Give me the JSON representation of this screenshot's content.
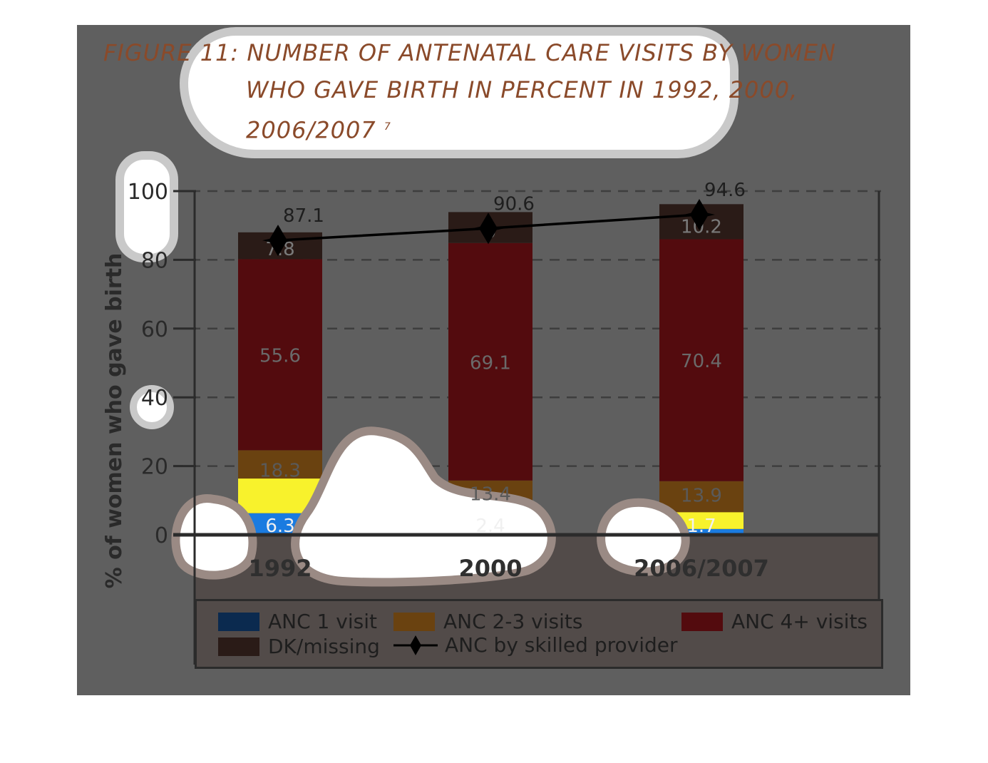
{
  "title": {
    "line1": "FIGURE 11: NUMBER OF ANTENATAL CARE VISITS  BY WOMEN",
    "line2": "WHO GAVE BIRTH IN PERCENT IN 1992, 2000,",
    "line3": "2006/2007",
    "footnote": "7"
  },
  "colors": {
    "anc1": "#1a7be0",
    "anc1_legend": "#0b2a4f",
    "anc23_low": "#f8f22c",
    "anc23": "#6a4210",
    "anc4": "#530b0e",
    "dk": "#2a1b17",
    "line": "#000000"
  },
  "chart_data": {
    "type": "bar",
    "stacked": true,
    "categories": [
      "1992",
      "2000",
      "2006/2007"
    ],
    "ylabel": "% of women who gave birth",
    "ylim": [
      0,
      100
    ],
    "yticks": [
      "0",
      "20",
      "40",
      "60",
      "80",
      "100"
    ],
    "grid": true,
    "legend_position": "bottom",
    "series": [
      {
        "name": "ANC 1 visit",
        "values": [
          6.3,
          2.4,
          1.7
        ],
        "labels": [
          "6.3",
          "2.4",
          "1.7"
        ]
      },
      {
        "name": "ANC 2-3 visits",
        "values": [
          18.3,
          13.4,
          13.9
        ],
        "labels": [
          "18.3",
          "13.4",
          "13.9"
        ]
      },
      {
        "name": "ANC 4+ visits",
        "values": [
          55.6,
          69.1,
          70.4
        ],
        "labels": [
          "55.6",
          "69.1",
          "70.4"
        ]
      },
      {
        "name": "DK/missing",
        "values": [
          7.8,
          9,
          10.2
        ],
        "labels": [
          "7.8",
          "9",
          "10.2"
        ]
      }
    ],
    "line_series": {
      "name": "ANC by skilled provider",
      "values": [
        87.1,
        90.6,
        94.6
      ],
      "labels": [
        "87.1",
        "90.6",
        "94.6"
      ]
    }
  },
  "legend": [
    {
      "label": "ANC 1 visit"
    },
    {
      "label": "ANC 2-3 visits"
    },
    {
      "label": "ANC 4+ visits"
    },
    {
      "label": "DK/missing"
    },
    {
      "label": "ANC by skilled provider"
    }
  ]
}
